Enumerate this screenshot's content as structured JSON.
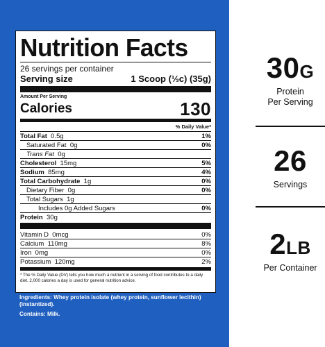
{
  "panel": {
    "color": "#1f5fbf"
  },
  "label": {
    "title": "Nutrition Facts",
    "servings_per_container": "26 servings per container",
    "serving_size_label": "Serving size",
    "serving_size_value": "1 Scoop (⅓c) (35g)",
    "amount_per_serving": "Amount Per Serving",
    "calories_label": "Calories",
    "calories_value": "130",
    "daily_value_header": "% Daily Value*",
    "nutrients": [
      {
        "name": "Total Fat",
        "amount": "0.5g",
        "dv": "1%"
      },
      {
        "name": "Saturated Fat",
        "amount": "0g",
        "dv": "0%"
      },
      {
        "name": "Trans Fat",
        "amount": "0g",
        "dv": ""
      },
      {
        "name": "Cholesterol",
        "amount": "15mg",
        "dv": "5%"
      },
      {
        "name": "Sodium",
        "amount": "85mg",
        "dv": "4%"
      },
      {
        "name": "Total Carbohydrate",
        "amount": "1g",
        "dv": "0%"
      },
      {
        "name": "Dietary Fiber",
        "amount": "0g",
        "dv": "0%"
      },
      {
        "name": "Total Sugars",
        "amount": "1g",
        "dv": ""
      },
      {
        "name": "Includes 0g Added Sugars",
        "amount": "",
        "dv": "0%"
      },
      {
        "name": "Protein",
        "amount": "30g",
        "dv": ""
      }
    ],
    "vitamins": [
      {
        "name": "Vitamin D",
        "amount": "0mcg",
        "dv": "0%"
      },
      {
        "name": "Calcium",
        "amount": "110mg",
        "dv": "8%"
      },
      {
        "name": "Iron",
        "amount": "0mg",
        "dv": "0%"
      },
      {
        "name": "Potassium",
        "amount": "120mg",
        "dv": "2%"
      }
    ],
    "footnote": "* The % Daily Value (DV) tells you how much a nutrient in a serving of food contributes to a daily diet. 2,000 calories a day is used for general nutrition advice."
  },
  "ingredients": "Ingredients: Whey protein isolate (whey protein, sunflower lecithin) (instantized).",
  "contains": "Contains: Milk.",
  "stats": [
    {
      "big": "30",
      "unit": "G",
      "sub": "Protein\nPer Serving"
    },
    {
      "big": "26",
      "unit": "",
      "sub": "Servings"
    },
    {
      "big": "2",
      "unit": "LB",
      "sub": "Per Container"
    }
  ]
}
